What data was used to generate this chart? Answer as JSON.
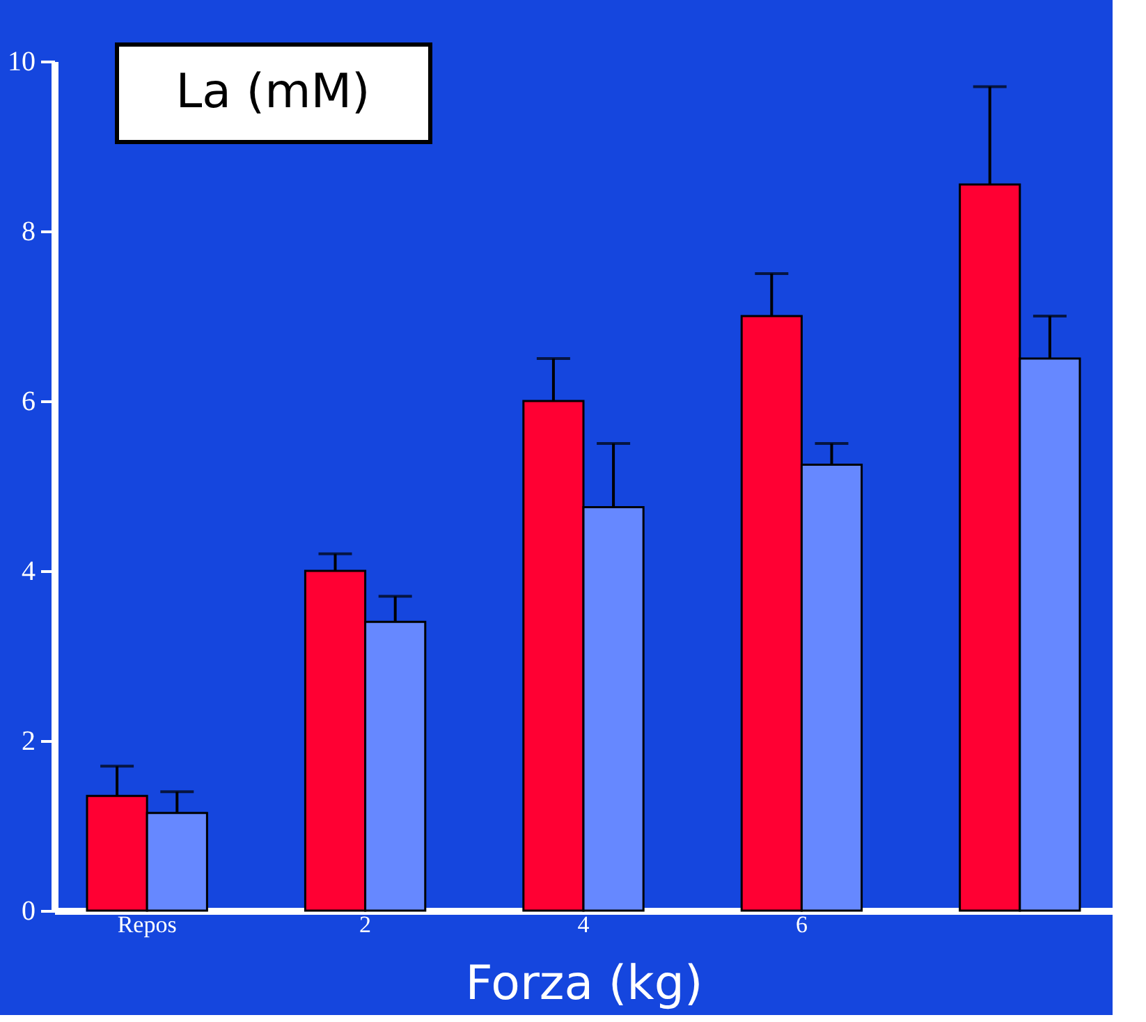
{
  "chart_data": {
    "type": "bar",
    "title": "La (mM)",
    "xlabel": "Forza (kg)",
    "categories": [
      "Repos",
      "2",
      "4",
      "6",
      null
    ],
    "series": [
      {
        "color": "#ff0033",
        "values": [
          1.35,
          4,
          6,
          7,
          8.55
        ],
        "errors": [
          [
            1.35,
            1.7
          ],
          [
            4,
            4.2
          ],
          [
            6,
            6.5
          ],
          [
            7,
            7.5
          ],
          [
            8.55,
            9.7
          ]
        ]
      },
      {
        "color": "#6688ff",
        "values": [
          1.15,
          3.4,
          4.75,
          5.25,
          6.5
        ],
        "errors": [
          [
            1.15,
            1.4
          ],
          [
            3.4,
            3.7
          ],
          [
            4.75,
            5.5
          ],
          [
            5.25,
            5.5
          ],
          [
            6.5,
            7
          ]
        ]
      }
    ],
    "ylim": [
      0,
      10
    ],
    "yticks": [
      0,
      2,
      4,
      6,
      8,
      10
    ],
    "grid": false
  }
}
